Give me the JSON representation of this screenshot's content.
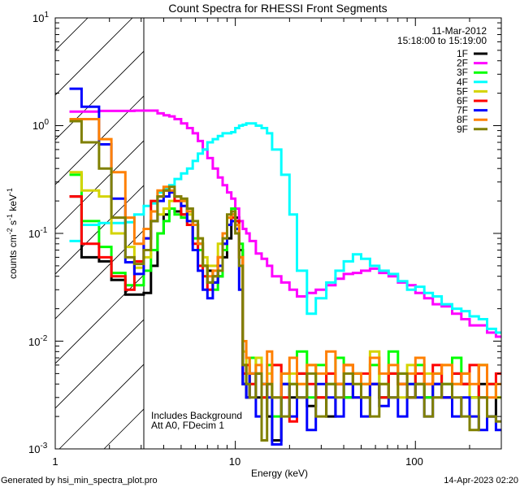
{
  "chart_data": {
    "type": "line",
    "title": "Count Spectra for RHESSI Front Segments",
    "xlabel": "Energy (keV)",
    "ylabel_parts": [
      "counts cm",
      "-2",
      " s",
      "-1",
      " keV",
      "-1"
    ],
    "xscale": "log",
    "yscale": "log",
    "xlim": [
      1,
      300
    ],
    "ylim": [
      0.001,
      10
    ],
    "x_ticks": [
      {
        "label": "1",
        "value": 1
      },
      {
        "label": "10",
        "value": 10
      },
      {
        "label": "100",
        "value": 100
      }
    ],
    "y_ticks": [
      {
        "base": "10",
        "exp": "1",
        "value": 10
      },
      {
        "base": "10",
        "exp": "0",
        "value": 1
      },
      {
        "base": "10",
        "exp": "-1",
        "value": 0.1
      },
      {
        "base": "10",
        "exp": "-2",
        "value": 0.01
      },
      {
        "base": "10",
        "exp": "-3",
        "value": 0.001
      }
    ],
    "date": "11-Mar-2012",
    "time_range": "15:18:00 to 15:19:00",
    "annotations": [
      "Includes Background",
      "Att A0, FDecim 1"
    ],
    "excluded_region_keV": [
      1,
      3.1
    ],
    "legend_position": "top-right",
    "energy_edges": [
      1.2,
      1.4,
      1.75,
      2.05,
      2.45,
      2.75,
      3.1,
      3.4,
      3.7,
      4.0,
      4.3,
      4.6,
      5.0,
      5.4,
      5.8,
      6.2,
      6.6,
      7.0,
      7.5,
      8.0,
      8.5,
      9.0,
      9.5,
      10,
      10.5,
      11,
      11.5,
      12,
      13,
      14,
      15,
      16,
      18,
      20,
      22,
      25,
      28,
      32,
      36,
      40,
      45,
      50,
      56,
      63,
      71,
      80,
      90,
      100,
      112,
      125,
      140,
      160,
      180,
      200,
      225,
      250,
      280,
      300
    ],
    "series": [
      {
        "name": "1F",
        "color": "#000000",
        "values": [
          0.22,
          0.06,
          0.055,
          0.037,
          0.027,
          0.027,
          0.028,
          0.05,
          0.1,
          0.15,
          0.17,
          0.16,
          0.15,
          0.17,
          0.12,
          0.08,
          0.05,
          0.045,
          0.035,
          0.04,
          0.06,
          0.09,
          0.15,
          0.14,
          0.07,
          0.004,
          0.003,
          0.005,
          0.003,
          0.004,
          0.002,
          0.0012,
          0.004,
          0.003,
          0.005,
          0.0025,
          0.003,
          0.002,
          0.004,
          0.003,
          0.005,
          0.003,
          0.004,
          0.003,
          0.005,
          0.004,
          0.003,
          0.004,
          0.003,
          0.004,
          0.003,
          0.005,
          0.004,
          0.003,
          0.004,
          0.002,
          0.003
        ]
      },
      {
        "name": "2F",
        "color": "#ff00ff",
        "values": [
          1.35,
          1.35,
          1.37,
          1.37,
          1.37,
          1.38,
          1.38,
          1.38,
          1.3,
          1.25,
          1.22,
          1.15,
          1.05,
          0.95,
          0.85,
          0.72,
          0.6,
          0.5,
          0.4,
          0.33,
          0.28,
          0.24,
          0.21,
          0.17,
          0.13,
          0.11,
          0.1,
          0.085,
          0.065,
          0.058,
          0.05,
          0.04,
          0.035,
          0.03,
          0.026,
          0.028,
          0.03,
          0.033,
          0.038,
          0.042,
          0.043,
          0.045,
          0.047,
          0.043,
          0.04,
          0.035,
          0.033,
          0.028,
          0.025,
          0.022,
          0.021,
          0.018,
          0.016,
          0.014,
          0.014,
          0.012,
          0.011
        ]
      },
      {
        "name": "3F",
        "color": "#00ff00",
        "values": [
          0.35,
          0.13,
          0.075,
          0.043,
          0.033,
          0.033,
          0.045,
          0.07,
          0.1,
          0.13,
          0.17,
          0.15,
          0.14,
          0.12,
          0.09,
          0.07,
          0.05,
          0.035,
          0.03,
          0.04,
          0.07,
          0.12,
          0.17,
          0.13,
          0.08,
          0.006,
          0.004,
          0.007,
          0.005,
          0.003,
          0.006,
          0.002,
          0.005,
          0.004,
          0.008,
          0.003,
          0.006,
          0.004,
          0.007,
          0.003,
          0.005,
          0.004,
          0.006,
          0.003,
          0.008,
          0.005,
          0.004,
          0.006,
          0.003,
          0.005,
          0.004,
          0.007,
          0.005,
          0.003,
          0.006,
          0.004,
          0.003
        ]
      },
      {
        "name": "4F",
        "color": "#00ffff",
        "values": [
          0.085,
          0.12,
          0.125,
          0.125,
          0.127,
          0.15,
          0.18,
          0.19,
          0.24,
          0.26,
          0.28,
          0.32,
          0.36,
          0.4,
          0.47,
          0.55,
          0.6,
          0.7,
          0.75,
          0.8,
          0.85,
          0.85,
          0.87,
          0.95,
          1.0,
          1.02,
          1.05,
          1.05,
          1.0,
          0.95,
          0.85,
          0.6,
          0.35,
          0.15,
          0.045,
          0.018,
          0.025,
          0.035,
          0.045,
          0.055,
          0.064,
          0.058,
          0.05,
          0.045,
          0.042,
          0.036,
          0.03,
          0.032,
          0.028,
          0.026,
          0.022,
          0.02,
          0.019,
          0.017,
          0.016,
          0.013,
          0.012
        ]
      },
      {
        "name": "5F",
        "color": "#d4d400",
        "values": [
          0.37,
          0.25,
          0.22,
          0.1,
          0.075,
          0.048,
          0.06,
          0.13,
          0.15,
          0.17,
          0.2,
          0.22,
          0.2,
          0.15,
          0.12,
          0.09,
          0.06,
          0.05,
          0.05,
          0.08,
          0.1,
          0.14,
          0.16,
          0.12,
          0.06,
          0.008,
          0.005,
          0.004,
          0.007,
          0.003,
          0.005,
          0.006,
          0.003,
          0.005,
          0.004,
          0.006,
          0.003,
          0.005,
          0.004,
          0.006,
          0.004,
          0.003,
          0.008,
          0.004,
          0.005,
          0.003,
          0.006,
          0.004,
          0.005,
          0.003,
          0.006,
          0.004,
          0.005,
          0.003,
          0.006,
          0.004,
          0.003
        ]
      },
      {
        "name": "6F",
        "color": "#ff0000",
        "values": [
          0.22,
          0.08,
          0.06,
          0.04,
          0.03,
          0.055,
          0.09,
          0.2,
          0.22,
          0.25,
          0.24,
          0.2,
          0.15,
          0.12,
          0.08,
          0.05,
          0.04,
          0.03,
          0.04,
          0.06,
          0.08,
          0.12,
          0.14,
          0.13,
          0.06,
          0.005,
          0.006,
          0.004,
          0.005,
          0.003,
          0.004,
          0.006,
          0.003,
          0.0018,
          0.005,
          0.004,
          0.003,
          0.005,
          0.004,
          0.006,
          0.003,
          0.005,
          0.004,
          0.003,
          0.005,
          0.004,
          0.003,
          0.005,
          0.004,
          0.006,
          0.003,
          0.005,
          0.004,
          0.006,
          0.003,
          0.004,
          0.005
        ]
      },
      {
        "name": "7F",
        "color": "#0000ff",
        "values": [
          2.2,
          1.5,
          0.67,
          0.21,
          0.054,
          0.042,
          0.09,
          0.13,
          0.2,
          0.22,
          0.24,
          0.22,
          0.18,
          0.13,
          0.07,
          0.045,
          0.03,
          0.025,
          0.035,
          0.05,
          0.08,
          0.12,
          0.13,
          0.11,
          0.03,
          0.004,
          0.003,
          0.005,
          0.002,
          0.004,
          0.003,
          0.0011,
          0.004,
          0.002,
          0.003,
          0.0015,
          0.004,
          0.003,
          0.002,
          0.004,
          0.003,
          0.002,
          0.004,
          0.0025,
          0.003,
          0.002,
          0.004,
          0.003,
          0.002,
          0.004,
          0.003,
          0.002,
          0.003,
          0.002,
          0.0015,
          0.002,
          0.0015
        ]
      },
      {
        "name": "8F",
        "color": "#ff8000",
        "values": [
          1.15,
          1.15,
          0.75,
          0.37,
          0.14,
          0.08,
          0.11,
          0.16,
          0.25,
          0.27,
          0.25,
          0.22,
          0.2,
          0.16,
          0.12,
          0.08,
          0.05,
          0.04,
          0.045,
          0.06,
          0.1,
          0.14,
          0.15,
          0.12,
          0.06,
          0.01,
          0.007,
          0.005,
          0.006,
          0.004,
          0.008,
          0.003,
          0.005,
          0.007,
          0.004,
          0.006,
          0.005,
          0.008,
          0.004,
          0.006,
          0.005,
          0.004,
          0.007,
          0.005,
          0.006,
          0.004,
          0.005,
          0.007,
          0.004,
          0.005,
          0.006,
          0.004,
          0.005,
          0.004,
          0.006,
          0.003,
          0.004
        ]
      },
      {
        "name": "9F",
        "color": "#808000",
        "values": [
          1.1,
          0.7,
          0.4,
          0.14,
          0.06,
          0.052,
          0.07,
          0.13,
          0.22,
          0.25,
          0.27,
          0.22,
          0.21,
          0.17,
          0.13,
          0.09,
          0.05,
          0.035,
          0.04,
          0.045,
          0.09,
          0.15,
          0.16,
          0.1,
          0.05,
          0.006,
          0.004,
          0.003,
          0.005,
          0.0012,
          0.004,
          0.003,
          0.002,
          0.004,
          0.003,
          0.005,
          0.002,
          0.004,
          0.003,
          0.005,
          0.004,
          0.003,
          0.002,
          0.004,
          0.003,
          0.005,
          0.003,
          0.004,
          0.002,
          0.003,
          0.004,
          0.003,
          0.002,
          0.0015,
          0.003,
          0.002,
          0.0018
        ]
      }
    ]
  },
  "footer": {
    "generated_by": "Generated by hsi_min_spectra_plot.pro",
    "timestamp": "14-Apr-2023 02:20"
  }
}
